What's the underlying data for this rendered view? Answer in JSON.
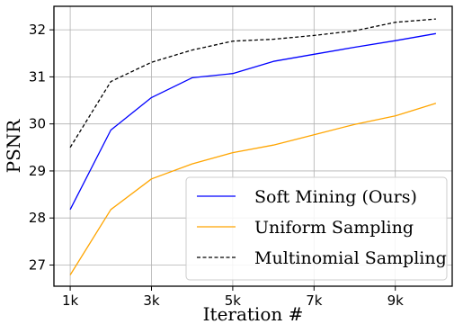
{
  "chart_data": {
    "type": "line",
    "xlabel": "Iteration #",
    "ylabel": "PSNR",
    "x": [
      1,
      2,
      3,
      4,
      5,
      6,
      7,
      8,
      9,
      10
    ],
    "xlim": [
      0.6,
      10.4
    ],
    "ylim": [
      26.55,
      32.5
    ],
    "x_ticks": [
      1,
      3,
      5,
      7,
      9
    ],
    "x_tick_labels": [
      "1k",
      "3k",
      "5k",
      "7k",
      "9k"
    ],
    "y_ticks": [
      27,
      28,
      29,
      30,
      31,
      32
    ],
    "y_tick_labels": [
      "27",
      "28",
      "29",
      "30",
      "31",
      "32"
    ],
    "grid": true,
    "legend_position": "bottom-right",
    "series": [
      {
        "name": "Soft Mining (Ours)",
        "color": "#0000ff",
        "dash": "solid",
        "values": [
          28.18,
          29.87,
          30.56,
          30.98,
          31.07,
          31.33,
          31.48,
          31.63,
          31.77,
          31.92
        ]
      },
      {
        "name": "Uniform Sampling",
        "color": "#ffa500",
        "dash": "solid",
        "values": [
          26.79,
          28.18,
          28.83,
          29.15,
          29.39,
          29.55,
          29.77,
          29.99,
          30.17,
          30.44
        ]
      },
      {
        "name": "Multinomial Sampling",
        "color": "#000000",
        "dash": "dashed",
        "values": [
          29.5,
          30.9,
          31.31,
          31.57,
          31.76,
          31.8,
          31.88,
          31.98,
          32.16,
          32.23
        ]
      }
    ]
  }
}
